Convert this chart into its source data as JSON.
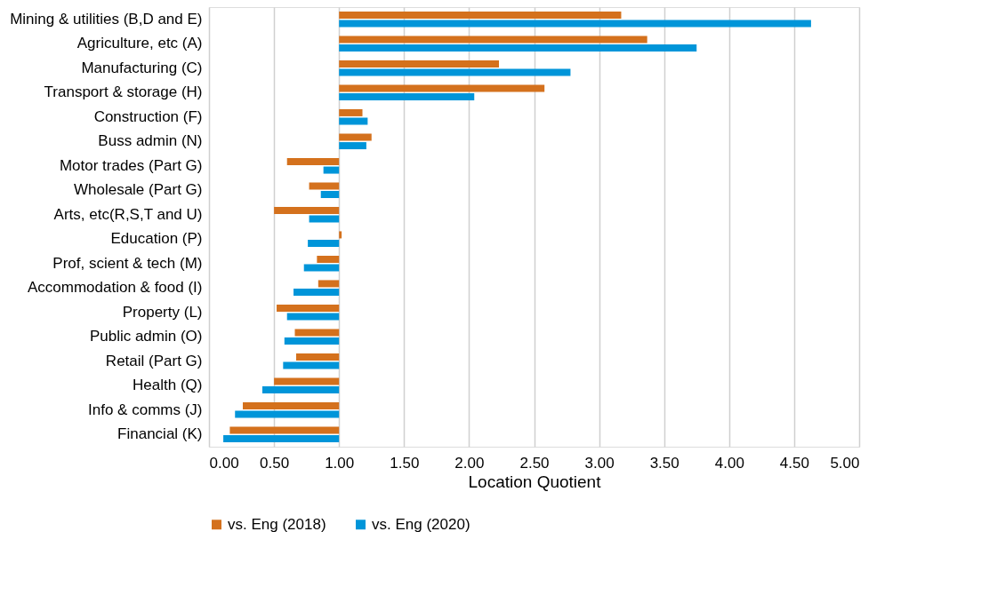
{
  "chart_data": {
    "type": "bar",
    "orientation": "horizontal",
    "xlabel": "Location Quotient",
    "categories": [
      "Mining & utilities (B,D and E)",
      "Agriculture, etc (A)",
      "Manufacturing (C)",
      "Transport & storage (H)",
      "Construction (F)",
      "Buss admin (N)",
      "Motor trades (Part G)",
      "Wholesale (Part G)",
      "Arts, etc(R,S,T and U)",
      "Education (P)",
      "Prof, scient & tech (M)",
      "Accommodation & food (I)",
      "Property (L)",
      "Public admin (O)",
      "Retail (Part G)",
      "Health (Q)",
      "Info & comms (J)",
      "Financial (K)"
    ],
    "series": [
      {
        "name": "vs. Eng (2018)",
        "color": "#d4711d",
        "base": [
          1,
          1,
          1,
          1,
          1,
          1,
          1,
          1,
          1,
          1,
          1,
          1,
          1,
          1,
          1,
          1,
          1,
          1
        ],
        "values": [
          2.17,
          2.37,
          1.23,
          1.58,
          0.18,
          0.25,
          -0.4,
          -0.23,
          -0.5,
          0.02,
          -0.17,
          -0.16,
          -0.48,
          -0.34,
          -0.33,
          -0.5,
          -0.74,
          -0.84
        ]
      },
      {
        "name": "vs. Eng (2020)",
        "color": "#0095d9",
        "base": [
          1,
          1,
          1,
          1,
          1,
          1,
          1,
          1,
          1,
          1,
          1,
          1,
          1,
          1,
          1,
          1,
          1,
          1
        ],
        "values": [
          3.63,
          2.75,
          1.78,
          1.04,
          0.22,
          0.21,
          -0.12,
          -0.14,
          -0.23,
          -0.24,
          -0.27,
          -0.35,
          -0.4,
          -0.42,
          -0.43,
          -0.59,
          -0.8,
          -0.89
        ]
      }
    ],
    "xlim": [
      0,
      5
    ],
    "xticks": [
      {
        "value": 0,
        "label": "0.00"
      },
      {
        "value": 0.5,
        "label": "0.50"
      },
      {
        "value": 1,
        "label": "1.00"
      },
      {
        "value": 1.5,
        "label": "1.50"
      },
      {
        "value": 2,
        "label": "2.00"
      },
      {
        "value": 2.5,
        "label": "2.50"
      },
      {
        "value": 3,
        "label": "3.00"
      },
      {
        "value": 3.5,
        "label": "3.50"
      },
      {
        "value": 4,
        "label": "4.00"
      },
      {
        "value": 4.5,
        "label": "4.50"
      },
      {
        "value": 5,
        "label": "5.00"
      }
    ],
    "grid": "x",
    "legend": "bottom"
  }
}
